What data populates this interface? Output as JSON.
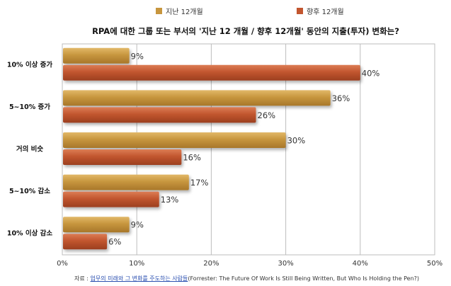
{
  "chart_data": {
    "type": "bar",
    "orientation": "horizontal",
    "title": "RPA에 대한 그룹 또는 부서의 '지난 12 개월 / 향후 12개월' 동안의 지출(투자) 변화는?",
    "categories": [
      "10% 이상 증가",
      "5~10% 증가",
      "거의 비슷",
      "5~10% 감소",
      "10% 이상 감소"
    ],
    "series": [
      {
        "name": "지난 12개월",
        "color": "#c7963e",
        "values": [
          9,
          36,
          30,
          17,
          9
        ]
      },
      {
        "name": "향후 12개월",
        "color": "#c2562f",
        "values": [
          40,
          26,
          16,
          13,
          6
        ]
      }
    ],
    "xlim": [
      0,
      50
    ],
    "xticks": [
      0,
      10,
      20,
      30,
      40,
      50
    ],
    "value_suffix": "%",
    "grid": true,
    "legend_position": "top"
  },
  "source": {
    "prefix": "자료 : ",
    "link_text": "업무의 미래와 그 변화를 주도하는 사람들",
    "suffix": "(Forrester: The Future Of Work Is Still Being Written, But Who Is Holding the Pen?)"
  }
}
